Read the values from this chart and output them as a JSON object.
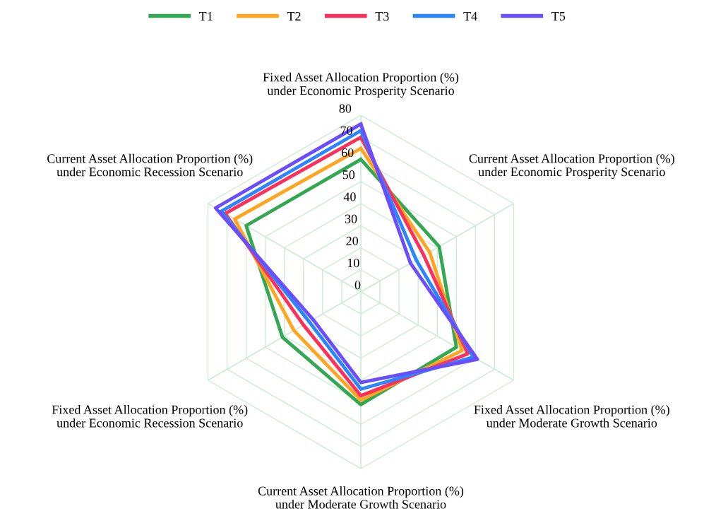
{
  "chart_data": {
    "type": "radar",
    "categories": [
      "Fixed Asset Allocation Proportion (%) under Economic Prosperity Scenario",
      "Current Asset Allocation Proportion (%) under Economic Prosperity Scenario",
      "Fixed Asset Allocation Proportion (%) under Moderate Growth Scenario",
      "Current Asset Allocation Proportion (%) under Moderate Growth Scenario",
      "Fixed Asset Allocation Proportion (%) under Economic Recession Scenario",
      "Current Asset Allocation Proportion (%) under Economic Recession Scenario"
    ],
    "series": [
      {
        "name": "T1",
        "color": "#33a852",
        "values": [
          60,
          41,
          50,
          51,
          41,
          60
        ]
      },
      {
        "name": "T2",
        "color": "#ffa51f",
        "values": [
          65,
          36,
          53,
          49,
          35,
          66
        ]
      },
      {
        "name": "T3",
        "color": "#ff2f5c",
        "values": [
          70,
          33,
          56,
          47,
          30,
          71
        ]
      },
      {
        "name": "T4",
        "color": "#2a86ff",
        "values": [
          73,
          29,
          59,
          44,
          27,
          73
        ]
      },
      {
        "name": "T5",
        "color": "#6b4dff",
        "values": [
          76,
          26,
          61,
          41,
          25,
          76
        ]
      }
    ],
    "ylim": [
      0,
      80
    ],
    "yticks": [
      0,
      10,
      20,
      30,
      40,
      50,
      60,
      70,
      80
    ],
    "grid": true,
    "legend": "top"
  }
}
